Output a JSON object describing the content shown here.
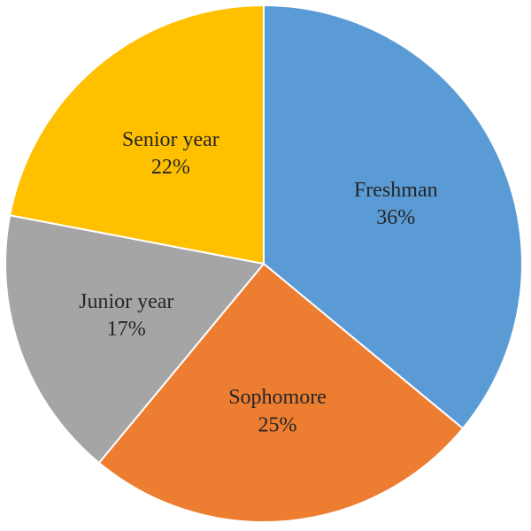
{
  "chart_data": {
    "type": "pie",
    "title": "",
    "legend": "none",
    "start_angle_deg": 0,
    "direction": "clockwise",
    "slices": [
      {
        "label": "Freshman",
        "value": 36,
        "value_label": "36%",
        "color": "#5b9bd5"
      },
      {
        "label": "Sophomore",
        "value": 25,
        "value_label": "25%",
        "color": "#ed7d31"
      },
      {
        "label": "Junior year",
        "value": 17,
        "value_label": "17%",
        "color": "#a5a5a5"
      },
      {
        "label": "Senior year",
        "value": 22,
        "value_label": "22%",
        "color": "#ffc000"
      }
    ]
  }
}
